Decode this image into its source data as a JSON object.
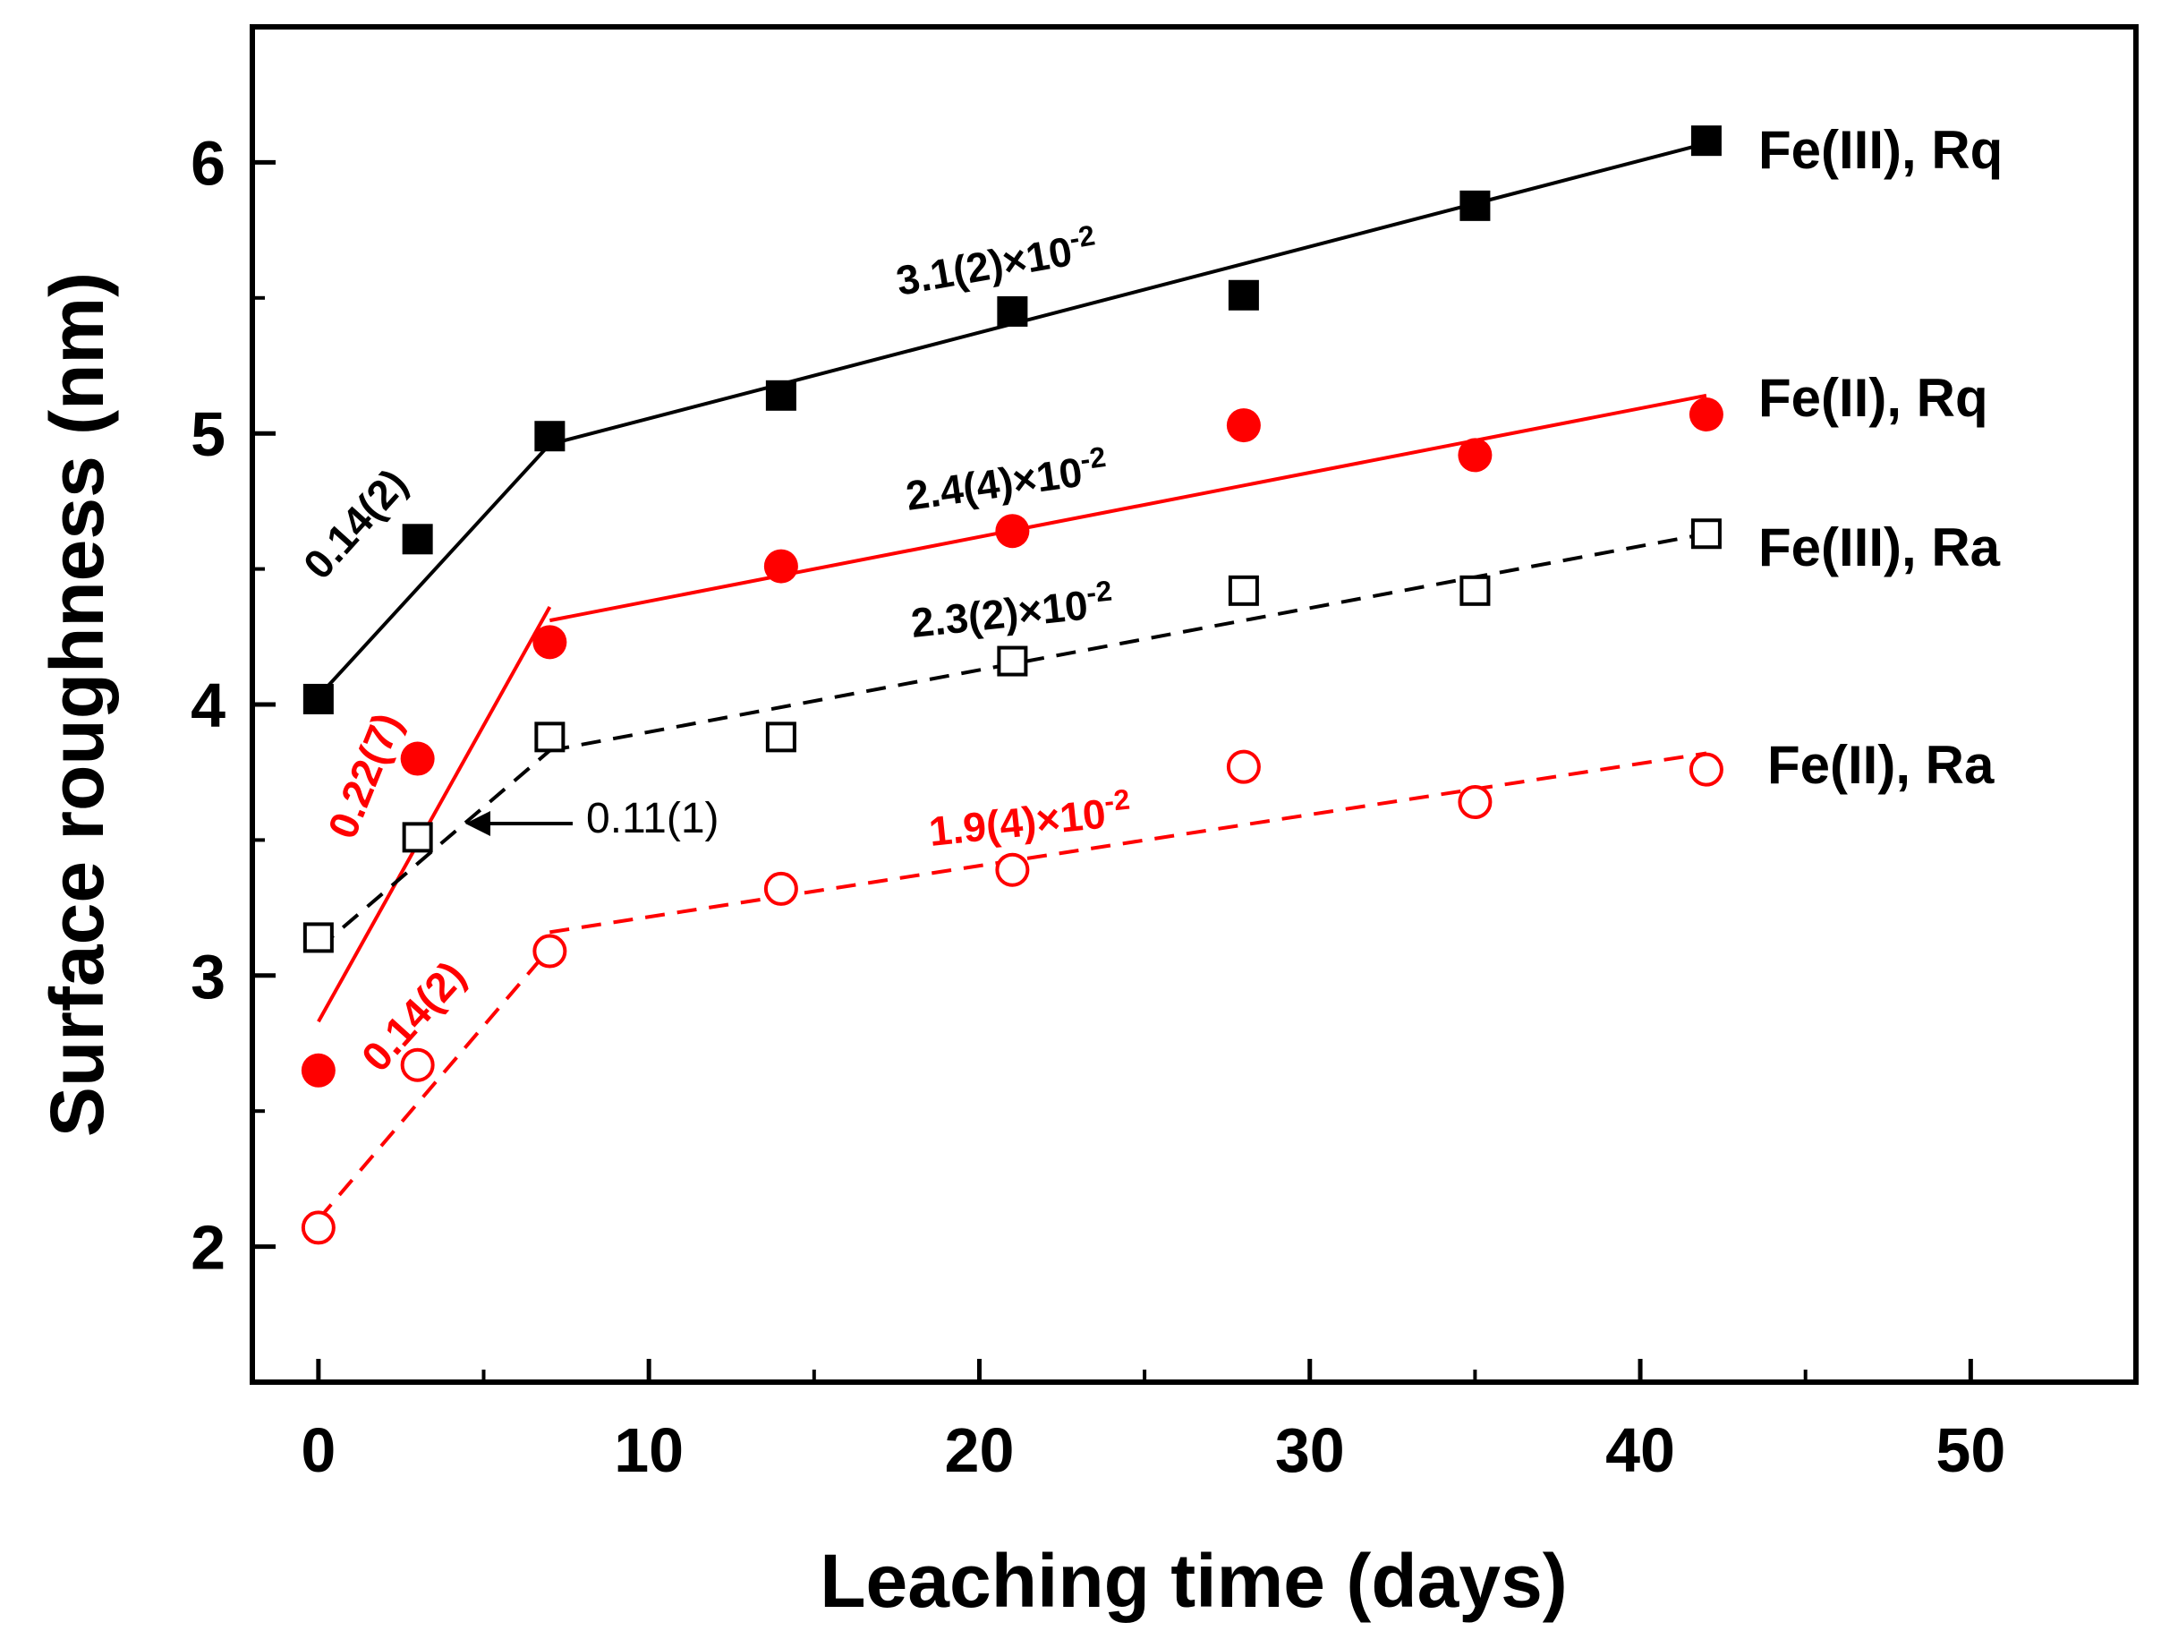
{
  "chart_data": {
    "type": "scatter",
    "title": "",
    "xlabel": "Leaching time (days)",
    "ylabel": "Surface roughness (nm)",
    "xlim": [
      -2,
      55
    ],
    "ylim": [
      1.5,
      6.5
    ],
    "xticks": [
      0,
      10,
      20,
      30,
      40,
      50
    ],
    "yticks": [
      2,
      3,
      4,
      5,
      6
    ],
    "grid": false,
    "legend": "none",
    "series": [
      {
        "name": "Fe(III), Rq",
        "color": "#000000",
        "marker": "square-filled",
        "line": "solid",
        "x": [
          0,
          3,
          7,
          14,
          21,
          28,
          35,
          42
        ],
        "y": [
          4.02,
          4.61,
          4.99,
          5.14,
          5.45,
          5.51,
          5.84,
          6.08
        ],
        "fit_lines": [
          {
            "x": [
              0,
              7
            ],
            "y": [
              4.03,
              4.96
            ]
          },
          {
            "x": [
              7,
              42
            ],
            "y": [
              4.96,
              6.07
            ]
          }
        ]
      },
      {
        "name": "Fe(II), Rq",
        "color": "#ff0000",
        "marker": "circle-filled",
        "line": "solid",
        "x": [
          0,
          3,
          7,
          14,
          21,
          28,
          35,
          42
        ],
        "y": [
          2.65,
          3.8,
          4.23,
          4.51,
          4.64,
          5.03,
          4.92,
          5.07
        ],
        "fit_lines": [
          {
            "x": [
              0,
              7
            ],
            "y": [
              2.83,
              4.36
            ]
          },
          {
            "x": [
              7,
              42
            ],
            "y": [
              4.31,
              5.14
            ]
          }
        ]
      },
      {
        "name": "Fe(III), Ra",
        "color": "#000000",
        "marker": "square-open",
        "line": "dashed",
        "x": [
          0,
          3,
          7,
          14,
          21,
          28,
          35,
          42
        ],
        "y": [
          3.14,
          3.51,
          3.88,
          3.88,
          4.16,
          4.42,
          4.42,
          4.63
        ],
        "fit_lines": [
          {
            "x": [
              0,
              7
            ],
            "y": [
              3.1,
              3.83
            ]
          },
          {
            "x": [
              7,
              42
            ],
            "y": [
              3.83,
              4.63
            ]
          }
        ]
      },
      {
        "name": "Fe(II), Ra",
        "color": "#ff0000",
        "marker": "circle-open",
        "line": "dashed",
        "x": [
          0,
          3,
          7,
          14,
          21,
          28,
          35,
          42
        ],
        "y": [
          2.07,
          2.67,
          3.09,
          3.32,
          3.39,
          3.77,
          3.64,
          3.76
        ],
        "fit_lines": [
          {
            "x": [
              0,
              7
            ],
            "y": [
              2.1,
              3.1
            ]
          },
          {
            "x": [
              7,
              42
            ],
            "y": [
              3.16,
              3.82
            ]
          }
        ]
      }
    ],
    "annotations": [
      {
        "id": "slope-fe3-rq-late",
        "text": "3.1(2)×10",
        "sup": "-2",
        "color": "#000000"
      },
      {
        "id": "slope-fe3-rq-early",
        "text": "0.14(2)",
        "color": "#000000"
      },
      {
        "id": "slope-fe2-rq-late",
        "text": "2.4(4)×10",
        "sup": "-2",
        "color": "#ff0000"
      },
      {
        "id": "slope-fe3-ra-late",
        "text": "2.3(2)×10",
        "sup": "-2",
        "color": "#000000"
      },
      {
        "id": "slope-fe2-rq-early",
        "text": "0.22(7)",
        "color": "#ff0000"
      },
      {
        "id": "slope-fe3-ra-early",
        "text": "0.11(1)",
        "color": "#000000"
      },
      {
        "id": "slope-fe2-ra-late",
        "text": "1.9(4)×10",
        "sup": "-2",
        "color": "#ff0000"
      },
      {
        "id": "slope-fe2-ra-early",
        "text": "0.14(2)",
        "color": "#ff0000"
      }
    ]
  }
}
